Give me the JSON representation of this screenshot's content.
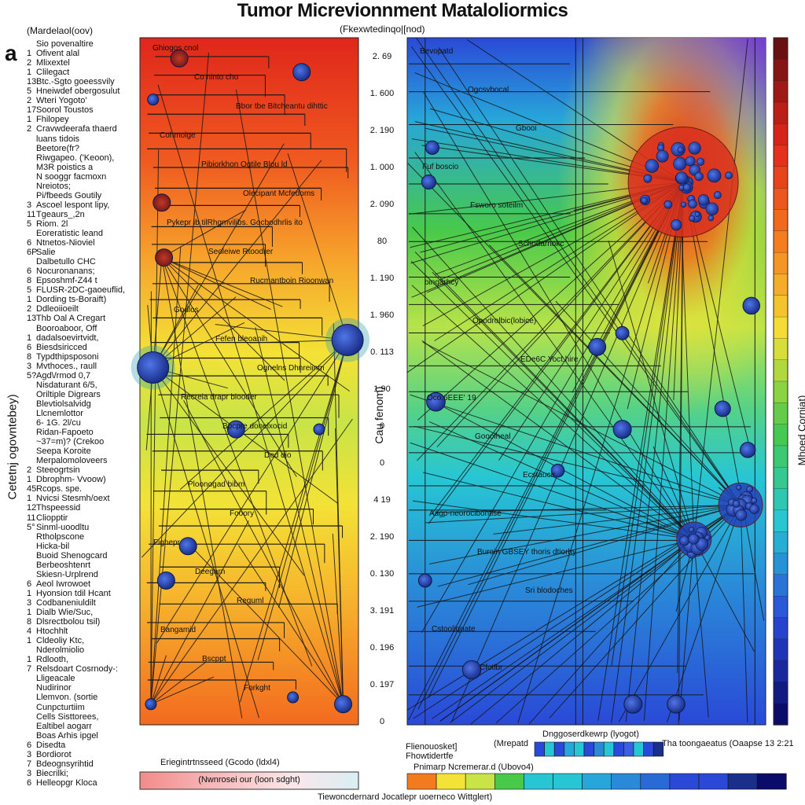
{
  "title": "Tumor Micrevionnment Mataloliormics",
  "panel_letter": "a",
  "left_col_header": "(Mardelaol(oov)",
  "center_header": "(Fkexwtedinqo|[nod)",
  "left_axis_label": "Cetetnj ogovntebey)",
  "mid_axis_label": "Cau fenom)",
  "right_axis_label": "Mhoed Corniat)",
  "row_labels": [
    {
      "num": "",
      "text": "Sio povenaltire"
    },
    {
      "num": "1",
      "text": "Ofivent alal"
    },
    {
      "num": "2",
      "text": "Mlixextel"
    },
    {
      "num": "1",
      "text": "Clilegact"
    },
    {
      "num": "13",
      "text": "Btc.-Sgto goeessvily"
    },
    {
      "num": "5",
      "text": "Hneiwdef obergosulut"
    },
    {
      "num": "2",
      "text": "Wteri Yogoto'"
    },
    {
      "num": "17",
      "text": "Soorol Toustos"
    },
    {
      "num": "1",
      "text": "Fhilopey"
    },
    {
      "num": "2",
      "text": "Cravwdeerafa thaerd"
    },
    {
      "num": "",
      "text": "luans tidois"
    },
    {
      "num": "",
      "text": "Beetore(fr?"
    },
    {
      "num": "",
      "text": "Riwgapeo. ('Keoon),"
    },
    {
      "num": "",
      "text": "M3R poistics a"
    },
    {
      "num": "",
      "text": "N sooggr facmoxn"
    },
    {
      "num": "",
      "text": "Nreiotos;"
    },
    {
      "num": "",
      "text": "Pi/fbeeds Goutily"
    },
    {
      "num": "3",
      "text": "Ascoel lespont lipy,"
    },
    {
      "num": "11",
      "text": "Tgeaurs_,2n"
    },
    {
      "num": "5",
      "text": "Riom. 2l"
    },
    {
      "num": "",
      "text": "Eoreratistic leand"
    },
    {
      "num": "6",
      "text": "Ntnetos-Nioviel"
    },
    {
      "num": "6P",
      "text": "Salie"
    },
    {
      "num": "",
      "text": "Dalbetullo CHC"
    },
    {
      "num": "6",
      "text": "Nocuronanans;"
    },
    {
      "num": "8",
      "text": "Epsoshmf-Z44 t"
    },
    {
      "num": "5",
      "text": "FLUSR-2DC-gaoeuflid,"
    },
    {
      "num": "1",
      "text": "Dording ts-Boraift)"
    },
    {
      "num": "2",
      "text": "Ddleoiioeilt"
    },
    {
      "num": "13",
      "text": "Thb Oal A Cregart"
    },
    {
      "num": "",
      "text": "Booroaboor, Off"
    },
    {
      "num": "1",
      "text": "dadalsoevirtvidt,"
    },
    {
      "num": "6",
      "text": "Biesdsiricced"
    },
    {
      "num": "8",
      "text": "Typdthipsposoni"
    },
    {
      "num": "3",
      "text": "Mvthoces., raull"
    },
    {
      "num": "5?",
      "text": "Agd\\/rmod 0,7"
    },
    {
      "num": "",
      "text": "Nisdaturant 6/5,"
    },
    {
      "num": "",
      "text": "Oriltiple Digrears"
    },
    {
      "num": "",
      "text": "Blevtiolsalvidg"
    },
    {
      "num": "",
      "text": "Llcnemlottor"
    },
    {
      "num": "",
      "text": "6- 1G. 2l/cu"
    },
    {
      "num": "",
      "text": "Ridan-Fapoeto"
    },
    {
      "num": "",
      "text": "~37=m)? (Crekoo"
    },
    {
      "num": "",
      "text": "Seepa Koroite"
    },
    {
      "num": "",
      "text": "Merpalomoloveers"
    },
    {
      "num": "2",
      "text": "Steeogrtsin"
    },
    {
      "num": "1",
      "text": "Dbrophm- Vvoow)"
    },
    {
      "num": "45",
      "text": "Rcops. spe."
    },
    {
      "num": "1",
      "text": "Nvicsi Stesmh/oext"
    },
    {
      "num": "12",
      "text": "Thspeessid"
    },
    {
      "num": "11",
      "text": "Cliopptir"
    },
    {
      "num": "5°",
      "text": "Sinml-uoodltu"
    },
    {
      "num": "",
      "text": "Rtholpscone"
    },
    {
      "num": "",
      "text": "Hicka-bil"
    },
    {
      "num": "",
      "text": "Buoid Shenogcard"
    },
    {
      "num": "",
      "text": "Berbeoshtenrt"
    },
    {
      "num": "",
      "text": "Skiesn-Urplrend"
    },
    {
      "num": "6",
      "text": "Aeol Iwrowoet"
    },
    {
      "num": "1",
      "text": "Hyonsion tdil Hcant"
    },
    {
      "num": "3",
      "text": "Codbaneniuldilt"
    },
    {
      "num": "1",
      "text": "Dialb Wie/Suc,"
    },
    {
      "num": "8",
      "text": "Dlsrectbolou tsil)"
    },
    {
      "num": "4",
      "text": "Htochhlt"
    },
    {
      "num": "1",
      "text": "Cldeoliy Ktc,"
    },
    {
      "num": "",
      "text": "Nderolmiolio"
    },
    {
      "num": "1",
      "text": "Rdlooth,"
    },
    {
      "num": "7",
      "text": "Relsdoart Cosrnody-:"
    },
    {
      "num": "",
      "text": "Lligeacale"
    },
    {
      "num": "",
      "text": "Nudirinor"
    },
    {
      "num": "",
      "text": "Llemvon. (sortie"
    },
    {
      "num": "",
      "text": "Cunpcturtiim"
    },
    {
      "num": "",
      "text": "Cells Sisttorees,"
    },
    {
      "num": "",
      "text": "Ealtibel aogarr"
    },
    {
      "num": "",
      "text": "Boas Arhis ipgel"
    },
    {
      "num": "6",
      "text": "Disedta"
    },
    {
      "num": "3",
      "text": "Bordiorot"
    },
    {
      "num": "7",
      "text": "Bdeognsyrihtid"
    },
    {
      "num": "3",
      "text": "Biecrilki;"
    },
    {
      "num": "6",
      "text": "Helleopgr Kloca"
    }
  ],
  "mid_ticks": [
    "2. 69",
    "1. 600",
    "2. 190",
    "1. 000",
    "2. 090",
    "80",
    "1. 190",
    "1. 960",
    "0. 113",
    "1.90",
    "0",
    "0",
    "4 19",
    "2. 190",
    "0. 130",
    "3. 191",
    "0. 196",
    "0. 197",
    "0"
  ],
  "left_annotations": [
    "Ghiogos cnol",
    "Co ninto cho",
    "Bbor tbe Bitcheantu dihttic",
    "Cohmoige",
    "Pibiorkhon Ogtile Blou ld",
    "Olecipant Mcfedoms",
    "Pykepr ib tilRhgmvilibs. Gocbodhrlis ito",
    "Seoleiwe Rtoodrer",
    "Rucmantboin Rioonwan",
    "Godlos",
    "Fefen bleoanih",
    "Ognelns Dhnreiinm",
    "Recreia drapr biooder",
    "Bpcpre donelxocid",
    "Ded dio",
    "Ploonogad bibm",
    "Fooory",
    "Fighepr",
    "Deegarn",
    "Reguml",
    "Bangamid",
    "Bscppt",
    "Forkght"
  ],
  "right_annotations": [
    "Bevopatd",
    "Ogcsvbocal",
    "Gbooi",
    "Fuf boscio",
    "Fsworo soteilm",
    "Schodarnokc",
    "bingarhcy",
    "Opodrolbic(lobice)",
    "EDe6C Yoct.hire",
    "Oco.6EEE' 19",
    "Goooiheal",
    "Ecstauclr",
    "Aagp-neorocibontise",
    "Buroin GBSEY thoris dtiorhy",
    "Sri blodoches",
    "Cstooliqnate",
    "Cfotlbr"
  ],
  "legend1_label": "Eriegintrtnsseed (Gcodo (ldxl4)",
  "legend1_inner": "(Nwnrosei our (loon sdght)",
  "legend2_a": "Flienouosket] Fhowtidertfe",
  "legend2_b": "(Mrepatd",
  "legend2_c": "Dnggoserdkewrp (lyogot)",
  "legend2_d": "Tha toongaeatus (Oaapse 13 2:21",
  "legend2_e": "Pnimarp Ncremerar.d (Ubovo4)",
  "footer": "Tiewoncdernard Jocatlepr uoerneco Wittglert)",
  "colors": {
    "red": "#e0261b",
    "orange": "#f47a1f",
    "yellow": "#f4e236",
    "green": "#48c94a",
    "cyan": "#27c6d4",
    "blue": "#2a49d8",
    "navy": "#0b0c6a",
    "violet": "#7b35d6",
    "dark_red": "#6a0f12",
    "node_blue": "#1e3fa8"
  },
  "chart_data": {
    "type": "heatmap",
    "title": "Tumor Micrevionnment Mataloliormics",
    "panels": [
      {
        "name": "left",
        "gradient_top_to_bottom": [
          "#e0261b",
          "#f47a1f",
          "#f4e236",
          "#b9e043",
          "#f4e236",
          "#f4a328",
          "#f47a1f"
        ],
        "nodes": [
          {
            "x": 0.18,
            "y": 0.03,
            "r": "m"
          },
          {
            "x": 0.74,
            "y": 0.05,
            "r": "m"
          },
          {
            "x": 0.06,
            "y": 0.09,
            "r": "s"
          },
          {
            "x": 0.1,
            "y": 0.24,
            "r": "m"
          },
          {
            "x": 0.11,
            "y": 0.32,
            "r": "m"
          },
          {
            "x": 0.95,
            "y": 0.44,
            "r": "l"
          },
          {
            "x": 0.06,
            "y": 0.48,
            "r": "l"
          },
          {
            "x": 0.44,
            "y": 0.57,
            "r": "m"
          },
          {
            "x": 0.82,
            "y": 0.57,
            "r": "s"
          },
          {
            "x": 0.22,
            "y": 0.74,
            "r": "m"
          },
          {
            "x": 0.12,
            "y": 0.79,
            "r": "m"
          },
          {
            "x": 0.05,
            "y": 0.97,
            "r": "s"
          },
          {
            "x": 0.7,
            "y": 0.96,
            "r": "s"
          },
          {
            "x": 0.93,
            "y": 0.97,
            "r": "m"
          }
        ]
      },
      {
        "name": "right",
        "gradient": [
          "#2a49d8",
          "#27c6d4",
          "#48c94a",
          "#f4e236",
          "#27c6d4",
          "#2a49d8"
        ],
        "hubs": [
          {
            "x": 0.77,
            "y": 0.21,
            "color": "red"
          },
          {
            "x": 0.93,
            "y": 0.68,
            "color": "blue"
          },
          {
            "x": 0.8,
            "y": 0.73,
            "color": "blue"
          }
        ]
      }
    ],
    "colorbar": {
      "orientation": "vertical",
      "colors_top_to_bottom": [
        "#6a0f12",
        "#e0261b",
        "#f47a1f",
        "#f4e236",
        "#48c94a",
        "#27c6d4",
        "#2a49d8",
        "#0b0c6a"
      ]
    }
  }
}
